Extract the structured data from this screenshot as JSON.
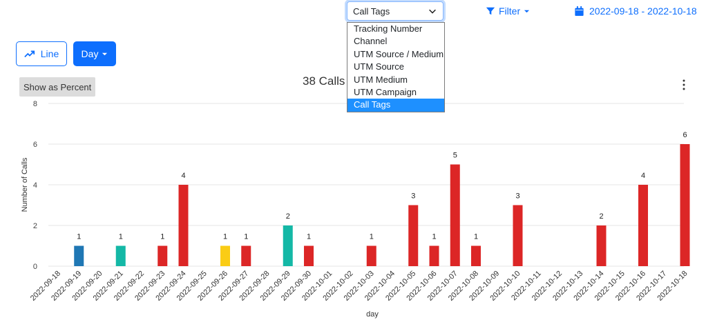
{
  "toolbar": {
    "select_value": "Call Tags",
    "select_options": [
      "Tracking Number",
      "Channel",
      "UTM Source / Medium",
      "UTM Source",
      "UTM Medium",
      "UTM Campaign",
      "Call Tags"
    ],
    "selected_option": "Call Tags",
    "filter_label": "Filter",
    "date_range": "2022-09-18 - 2022-10-18"
  },
  "controls": {
    "line_label": "Line",
    "day_label": "Day",
    "percent_label": "Show as Percent"
  },
  "icons": {
    "trend": "trending-up-icon",
    "filter": "filter-icon",
    "calendar": "calendar-icon",
    "menu": "kebab-menu-icon"
  },
  "chart_data": {
    "type": "bar",
    "title": "38 Calls",
    "xlabel": "day",
    "ylabel": "Number of Calls",
    "ylim": [
      0,
      8
    ],
    "yticks": [
      0,
      2,
      4,
      6,
      8
    ],
    "grid": true,
    "categories": [
      "2022-09-18",
      "2022-09-19",
      "2022-09-20",
      "2022-09-21",
      "2022-09-22",
      "2022-09-23",
      "2022-09-24",
      "2022-09-25",
      "2022-09-26",
      "2022-09-27",
      "2022-09-28",
      "2022-09-29",
      "2022-09-30",
      "2022-10-01",
      "2022-10-02",
      "2022-10-03",
      "2022-10-04",
      "2022-10-05",
      "2022-10-06",
      "2022-10-07",
      "2022-10-08",
      "2022-10-09",
      "2022-10-10",
      "2022-10-11",
      "2022-10-12",
      "2022-10-13",
      "2022-10-14",
      "2022-10-15",
      "2022-10-16",
      "2022-10-17",
      "2022-10-18"
    ],
    "values": [
      0,
      1,
      0,
      1,
      0,
      1,
      4,
      0,
      1,
      1,
      0,
      2,
      1,
      0,
      0,
      1,
      0,
      3,
      1,
      5,
      1,
      0,
      3,
      0,
      0,
      0,
      2,
      0,
      4,
      0,
      6
    ],
    "colors": [
      "#dc2626",
      "#1f77b4",
      "#dc2626",
      "#14b8a6",
      "#dc2626",
      "#dc2626",
      "#dc2626",
      "#dc2626",
      "#facc15",
      "#dc2626",
      "#dc2626",
      "#14b8a6",
      "#dc2626",
      "#dc2626",
      "#dc2626",
      "#dc2626",
      "#dc2626",
      "#dc2626",
      "#dc2626",
      "#dc2626",
      "#dc2626",
      "#dc2626",
      "#dc2626",
      "#dc2626",
      "#dc2626",
      "#dc2626",
      "#dc2626",
      "#dc2626",
      "#dc2626",
      "#dc2626",
      "#dc2626"
    ]
  }
}
